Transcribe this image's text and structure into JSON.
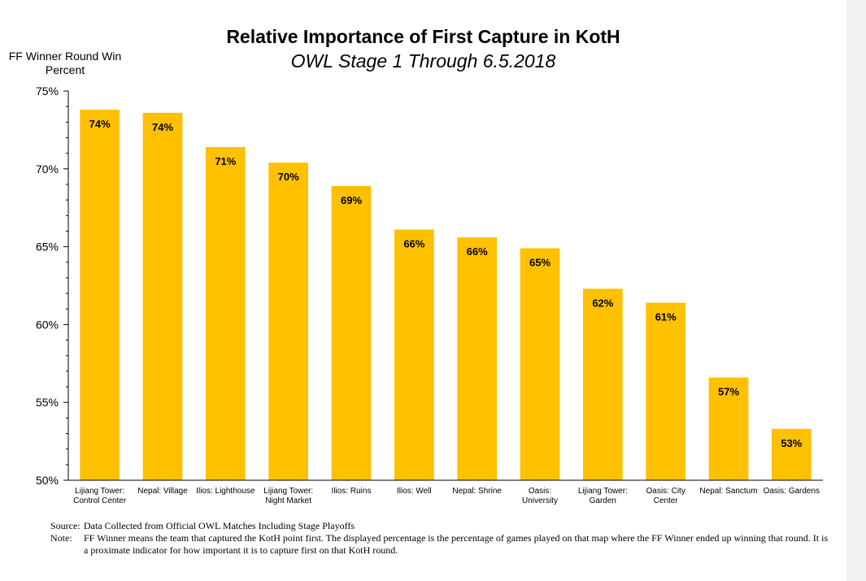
{
  "chart_data": {
    "type": "bar",
    "title": "Relative Importance of First Capture in KotH",
    "subtitle": "OWL Stage 1 Through 6.5.2018",
    "ylabel": "FF Winner Round Win Percent",
    "xlabel": "",
    "ylim": [
      50,
      75
    ],
    "yticks": [
      "50%",
      "55%",
      "60%",
      "65%",
      "70%",
      "75%"
    ],
    "bar_color": "#FFC000",
    "categories": [
      [
        "Lijiang Tower:",
        "Control Center"
      ],
      [
        "Nepal: Village"
      ],
      [
        "Ilios: Lighthouse"
      ],
      [
        "Lijiang Tower:",
        "Night Market"
      ],
      [
        "Ilios: Ruins"
      ],
      [
        "Ilios: Well"
      ],
      [
        "Nepal: Shrine"
      ],
      [
        "Oasis:",
        "University"
      ],
      [
        "Lijiang Tower:",
        "Garden"
      ],
      [
        "Oasis: City",
        "Center"
      ],
      [
        "Nepal: Sanctum"
      ],
      [
        "Oasis: Gardens"
      ]
    ],
    "values": [
      73.8,
      73.6,
      71.4,
      70.4,
      68.9,
      66.1,
      65.6,
      64.9,
      62.3,
      61.4,
      56.6,
      53.3
    ],
    "data_labels": [
      "74%",
      "74%",
      "71%",
      "70%",
      "69%",
      "66%",
      "66%",
      "65%",
      "62%",
      "61%",
      "57%",
      "53%"
    ]
  },
  "footnotes": {
    "source_label": "Source:",
    "source_text": "Data Collected from Official OWL Matches Including Stage Playoffs",
    "note_label": "Note:",
    "note_text": "FF Winner means the team that captured the KotH point first.  The displayed percentage is the percentage of games played on that map where the FF Winner ended up winning that round.  It is a proximate indicator for how important it is to capture first on that KotH round."
  }
}
